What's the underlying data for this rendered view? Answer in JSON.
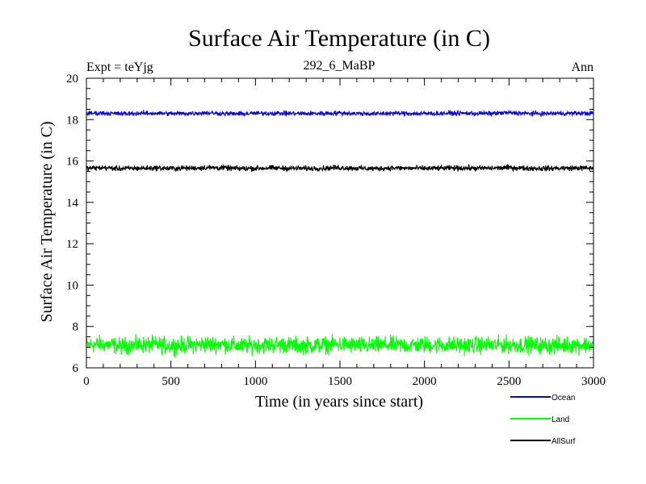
{
  "chart_data": {
    "type": "line",
    "title": "Surface Air Temperature (in C)",
    "subtitle": "292_6_MaBP",
    "left_label": "Expt = teYjg",
    "right_label": "Ann",
    "xlabel": "Time (in years since start)",
    "ylabel": "Surface Air Temperature (in C)",
    "xlim": [
      0,
      3000
    ],
    "ylim": [
      6,
      20
    ],
    "xticks": [
      0,
      500,
      1000,
      1500,
      2000,
      2500,
      3000
    ],
    "yticks": [
      6,
      8,
      10,
      12,
      14,
      16,
      18,
      20
    ],
    "x_minor_step": 100,
    "y_minor_step": 0.5,
    "x": [
      0,
      100,
      200,
      300,
      400,
      500,
      600,
      700,
      800,
      900,
      1000,
      1100,
      1200,
      1300,
      1400,
      1500,
      1600,
      1700,
      1800,
      1900,
      2000,
      2100,
      2200,
      2300,
      2400,
      2500,
      2600,
      2700,
      2800,
      2900,
      3000
    ],
    "series": [
      {
        "name": "Ocean",
        "color": "#0000ff",
        "mean": 18.3,
        "noise": 0.12,
        "values": [
          18.3,
          18.32,
          18.28,
          18.3,
          18.31,
          18.29,
          18.3,
          18.33,
          18.3,
          18.28,
          18.3,
          18.31,
          18.3,
          18.29,
          18.3,
          18.32,
          18.3,
          18.28,
          18.31,
          18.3,
          18.29,
          18.3,
          18.31,
          18.3,
          18.3,
          18.33,
          18.3,
          18.29,
          18.3,
          18.31,
          18.3
        ]
      },
      {
        "name": "Land",
        "color": "#00ff00",
        "mean": 7.1,
        "noise": 0.45,
        "values": [
          7.1,
          7.15,
          7.05,
          7.1,
          7.12,
          7.08,
          7.1,
          7.14,
          7.15,
          7.06,
          7.1,
          7.12,
          7.1,
          7.08,
          7.1,
          7.13,
          7.1,
          7.07,
          7.11,
          7.1,
          7.12,
          7.1,
          7.09,
          7.1,
          7.1,
          7.13,
          7.1,
          7.08,
          7.1,
          7.11,
          7.1
        ]
      },
      {
        "name": "AllSurf",
        "color": "#000000",
        "mean": 15.65,
        "noise": 0.14,
        "values": [
          15.65,
          15.67,
          15.63,
          15.65,
          15.66,
          15.64,
          15.65,
          15.68,
          15.67,
          15.63,
          15.65,
          15.66,
          15.65,
          15.64,
          15.65,
          15.67,
          15.65,
          15.63,
          15.66,
          15.65,
          15.64,
          15.65,
          15.66,
          15.65,
          15.65,
          15.68,
          15.65,
          15.64,
          15.65,
          15.66,
          15.65
        ]
      }
    ],
    "legend_location": "bottom-right"
  }
}
